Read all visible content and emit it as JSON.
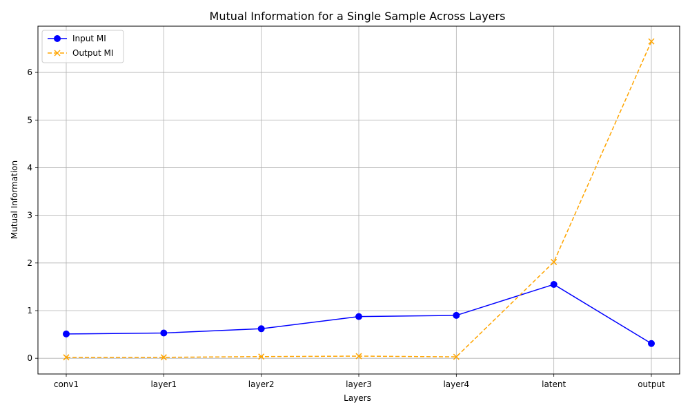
{
  "chart_data": {
    "type": "line",
    "title": "Mutual Information for a Single Sample Across Layers",
    "xlabel": "Layers",
    "ylabel": "Mutual Information",
    "categories": [
      "conv1",
      "layer1",
      "layer2",
      "layer3",
      "layer4",
      "latent",
      "output"
    ],
    "ylim": [
      -0.33,
      6.97
    ],
    "yticks": [
      0,
      1,
      2,
      3,
      4,
      5,
      6
    ],
    "grid": true,
    "legend": "top-left",
    "series": [
      {
        "name": "Input MI",
        "values": [
          0.51,
          0.53,
          0.62,
          0.875,
          0.9,
          1.55,
          0.31
        ],
        "color": "#0000ff",
        "marker": "circle",
        "linestyle": "solid"
      },
      {
        "name": "Output MI",
        "values": [
          0.02,
          0.02,
          0.035,
          0.045,
          0.03,
          2.02,
          6.65
        ],
        "color": "#ffa500",
        "marker": "x",
        "linestyle": "dashed"
      }
    ]
  }
}
